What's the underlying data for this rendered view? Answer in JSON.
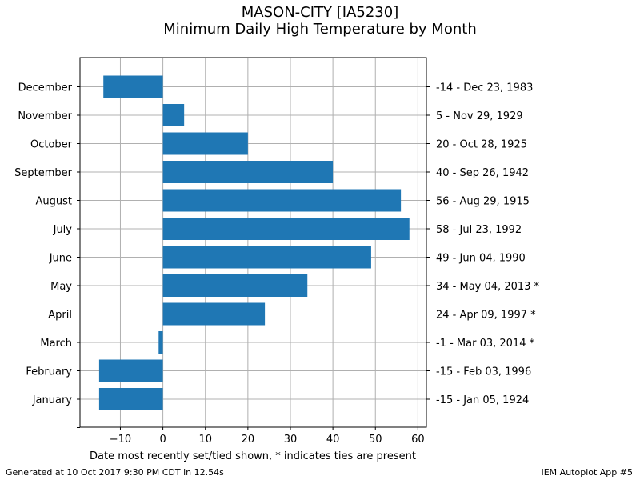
{
  "chart_data": {
    "type": "bar",
    "orientation": "horizontal",
    "title": "MASON-CITY [IA5230]",
    "subtitle": "Minimum Daily High Temperature by Month",
    "xlabel": "Date most recently set/tied shown, * indicates ties are present",
    "ylabel": "",
    "xlim": [
      -19.5,
      62
    ],
    "xticks": [
      -10,
      0,
      10,
      20,
      30,
      40,
      50,
      60
    ],
    "xtick_labels": [
      "−10",
      "0",
      "10",
      "20",
      "30",
      "40",
      "50",
      "60"
    ],
    "grid": true,
    "bar_color": "#1f77b4",
    "categories": [
      "January",
      "February",
      "March",
      "April",
      "May",
      "June",
      "July",
      "August",
      "September",
      "October",
      "November",
      "December"
    ],
    "values": [
      -15,
      -15,
      -1,
      24,
      34,
      49,
      58,
      56,
      40,
      20,
      5,
      -14
    ],
    "right_labels": [
      "-15 - Jan 05, 1924",
      "-15 - Feb 03, 1996",
      "-1 - Mar 03, 2014 *",
      "24 - Apr 09, 1997 *",
      "34 - May 04, 2013 *",
      "49 - Jun 04, 1990",
      "58 - Jul 23, 1992",
      "56 - Aug 29, 1915",
      "40 - Sep 26, 1942",
      "20 - Oct 28, 1925",
      "5 - Nov 29, 1929",
      "-14 - Dec 23, 1983"
    ]
  },
  "footer": {
    "generated": "Generated at 10 Oct 2017 9:30 PM CDT in 12.54s",
    "app": "IEM Autoplot App #5"
  }
}
